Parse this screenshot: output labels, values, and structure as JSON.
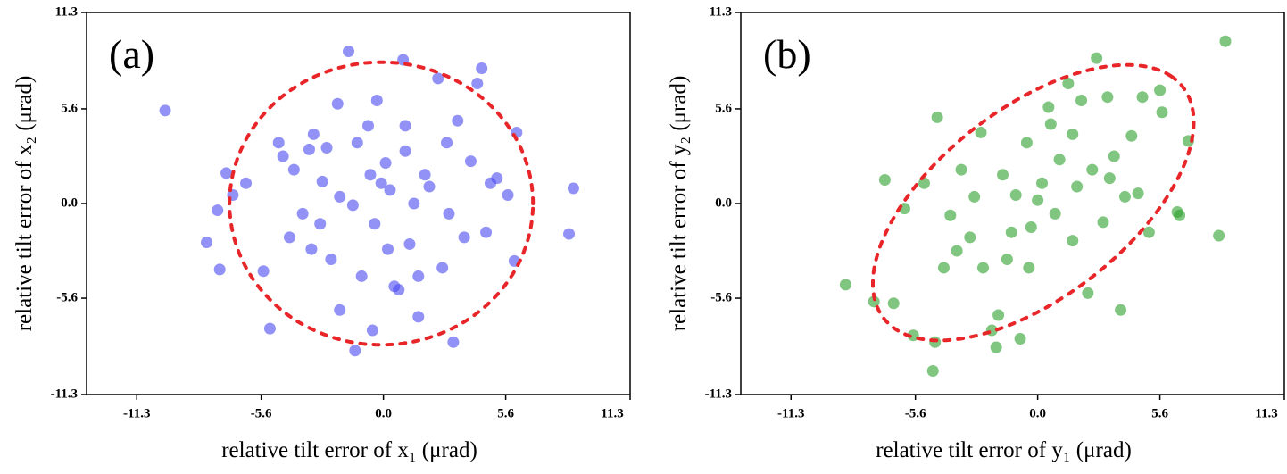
{
  "chart_data": [
    {
      "type": "scatter",
      "panel_label": "(a)",
      "x_label": "relative tilt error of x₁ (μrad)",
      "y_label": "relative tilt error of x₂ (μrad)",
      "color": "#4a4af0",
      "x": [
        -10.0,
        -8.1,
        -7.6,
        -7.5,
        -7.2,
        -6.9,
        -6.3,
        -5.5,
        -5.2,
        -4.8,
        -4.6,
        -4.3,
        -4.1,
        -3.7,
        -3.3,
        -3.2,
        -2.8,
        -2.6,
        -2.4,
        -2.1,
        -2.0,
        -1.6,
        -1.4,
        -1.3,
        -1.0,
        -0.7,
        -0.5,
        -0.3,
        -0.1,
        0.1,
        0.3,
        0.5,
        0.7,
        0.9,
        1.0,
        1.2,
        1.4,
        1.6,
        1.9,
        2.1,
        2.5,
        2.7,
        3.0,
        3.2,
        3.4,
        3.7,
        4.0,
        4.3,
        4.5,
        4.7,
        4.9,
        5.2,
        5.7,
        6.0,
        6.1,
        8.5,
        8.7,
        -3.4,
        -1.2,
        -0.4,
        1.0,
        2.9,
        -2.0,
        1.6,
        -2.9,
        0.2,
        -0.6
      ],
      "values": [
        5.5,
        -2.3,
        -0.4,
        -3.9,
        1.8,
        0.5,
        1.2,
        -4.0,
        -7.4,
        3.6,
        2.8,
        -2.0,
        2.0,
        -0.6,
        -2.7,
        4.1,
        1.3,
        3.3,
        -3.3,
        5.9,
        -6.3,
        9.0,
        -0.1,
        -8.7,
        -4.3,
        4.6,
        -7.5,
        6.1,
        1.2,
        2.4,
        0.8,
        -4.9,
        -5.1,
        8.5,
        3.1,
        -2.4,
        0.0,
        -6.7,
        1.7,
        1.0,
        7.4,
        -3.8,
        -0.6,
        -8.2,
        4.9,
        -2.0,
        2.5,
        7.1,
        8.0,
        -1.7,
        1.2,
        1.5,
        0.5,
        -3.4,
        4.2,
        -1.8,
        0.9,
        3.2,
        3.6,
        -1.2,
        4.6,
        3.6,
        0.4,
        -4.3,
        -1.2,
        -2.7,
        1.7
      ],
      "ellipse": {
        "center": [
          -0.1,
          0.0
        ],
        "radii": [
          6.95,
          8.36
        ],
        "angle": 0,
        "color": "#e8262a"
      },
      "xlim": [
        -13.6,
        11.3
      ],
      "ylim": [
        -11.3,
        11.3
      ],
      "xticks": [
        -11.3,
        -5.6,
        {
          "value": 0,
          "label": "0.0"
        },
        5.6,
        11.3
      ],
      "yticks": [
        -11.3,
        -5.6,
        {
          "value": 0,
          "label": "0.0"
        },
        5.6,
        11.3
      ]
    },
    {
      "type": "scatter",
      "panel_label": "(b)",
      "x_label": "relative tilt error of y₁ (μrad)",
      "y_label": "relative tilt error of y₂ (μrad)",
      "color": "#2ca02c",
      "x": [
        8.6,
        8.3,
        -8.8,
        -7.5,
        -7.0,
        -6.6,
        -6.1,
        -5.7,
        -5.2,
        -4.8,
        -4.7,
        -4.6,
        -4.3,
        -4.0,
        -3.5,
        -3.1,
        -2.6,
        -2.1,
        -1.9,
        -1.8,
        -1.6,
        -1.4,
        -1.0,
        -0.8,
        -0.5,
        -0.3,
        0.0,
        0.2,
        0.5,
        0.8,
        1.0,
        1.4,
        1.6,
        1.8,
        2.0,
        2.3,
        2.5,
        2.7,
        3.0,
        3.2,
        3.5,
        3.8,
        4.0,
        4.3,
        4.6,
        4.8,
        5.1,
        5.6,
        5.7,
        6.4,
        6.5,
        6.9,
        -2.9,
        -1.2,
        0.6,
        1.6,
        3.3,
        -0.4,
        -2.5,
        -3.7
      ],
      "values": [
        9.6,
        -1.9,
        -4.8,
        -5.8,
        1.4,
        -5.9,
        -0.3,
        -7.8,
        1.2,
        -9.9,
        -8.2,
        5.1,
        -3.8,
        -0.7,
        2.0,
        -2.0,
        4.2,
        -7.5,
        -8.5,
        -6.6,
        1.7,
        -3.3,
        0.5,
        -8.0,
        3.6,
        -1.4,
        0.2,
        1.2,
        5.7,
        -0.6,
        2.6,
        7.1,
        -2.2,
        1.0,
        6.1,
        -5.3,
        2.0,
        8.6,
        -1.1,
        6.3,
        2.8,
        -6.3,
        0.4,
        4.0,
        0.6,
        6.3,
        -1.7,
        6.7,
        5.4,
        -0.5,
        -0.7,
        3.7,
        0.4,
        -1.7,
        4.7,
        4.1,
        1.5,
        -3.8,
        -3.8,
        -2.8
      ],
      "ellipse": {
        "center": [
          -0.2,
          0.05
        ],
        "radii": [
          9.79,
          4.96
        ],
        "angle": 50,
        "color": "#e8262a"
      },
      "xlim": [
        -13.6,
        11.3
      ],
      "ylim": [
        -11.3,
        11.3
      ],
      "xticks": [
        -11.3,
        -5.6,
        {
          "value": 0,
          "label": "0.0"
        },
        5.6,
        11.3
      ],
      "yticks": [
        -11.3,
        -5.6,
        {
          "value": 0,
          "label": "0.0"
        },
        5.6,
        11.3
      ]
    }
  ]
}
